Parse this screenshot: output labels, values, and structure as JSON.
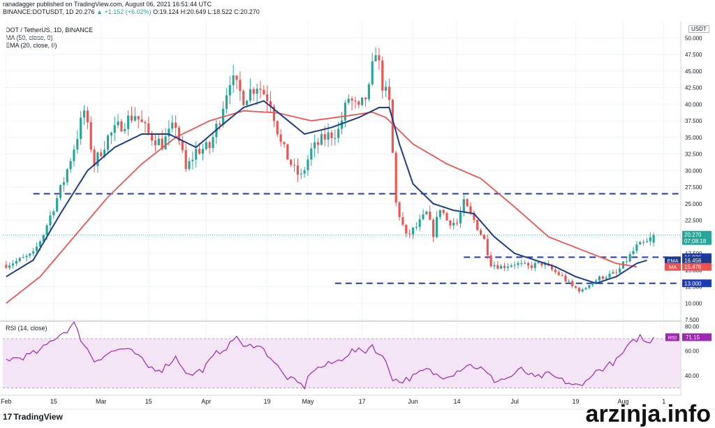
{
  "header": {
    "publisher": "ranadagger published on TradingView.com, August 06, 2021 16:51:44 UTC",
    "symbol": "BINANCE:DOTUSDT, 1D",
    "last": "20.276",
    "change_arrow": "▲",
    "change": "+1.152 (+6.02%)",
    "ohlc": "O:19.124 H:20.649 L:18.522 C:20.270"
  },
  "legend": {
    "title": "DOT / TetherUS, 1D, BINANCE",
    "ma": "MA (50, close, 0)",
    "ema": "EMA (20, close, 0)"
  },
  "rsi_title": "RSI (14, close)",
  "currency": "USDT",
  "footer_logo": "TradingView",
  "watermark": "arzinja.info",
  "colors": {
    "up": "#26a69a",
    "down": "#ef5350",
    "ema": "#1e3a8a",
    "ma": "#ef5350",
    "levels": "#1e3bb3",
    "rsi": "#9c27b0",
    "rsi_band": "#f3e5f5",
    "axis_text": "#131722"
  },
  "chart_data": {
    "type": "candlestick",
    "price_axis": {
      "ticks": [
        7.5,
        10,
        12.5,
        15,
        17.5,
        20,
        22.5,
        25,
        27.5,
        30,
        32.5,
        35,
        37.5,
        40,
        42.5,
        45,
        47.5,
        50
      ],
      "tick_labels": [
        "7.500",
        "10.000",
        "12.500",
        "15.000",
        "17.500",
        "20.000",
        "22.500",
        "25.000",
        "27.500",
        "30.000",
        "32.500",
        "35.000",
        "37.500",
        "40.000",
        "42.500",
        "45.000",
        "47.500",
        "50.000"
      ],
      "ylim": [
        7.5,
        51.5
      ]
    },
    "rsi_axis": {
      "ticks": [
        40,
        60,
        80
      ],
      "tick_labels": [
        "40.00",
        "60.00",
        "80.00"
      ],
      "ylim": [
        27,
        83
      ],
      "band": [
        30,
        70
      ]
    },
    "time_axis": {
      "labels": [
        "Feb",
        "15",
        "Mar",
        "15",
        "Apr",
        "19",
        "May",
        "17",
        "Jun",
        "14",
        "Jul",
        "19",
        "Aug",
        "1"
      ],
      "label_days": [
        0,
        14,
        28,
        42,
        59,
        77,
        89,
        105,
        120,
        133,
        150,
        168,
        182,
        194
      ]
    },
    "levels": [
      {
        "value": 26.5,
        "label": "26.500",
        "from_day": 8
      },
      {
        "value": 16.936,
        "label": "16.936",
        "from_day": 135
      },
      {
        "value": 13.0,
        "label": "13.000",
        "from_day": 97
      }
    ],
    "price_labels": [
      {
        "label": "20.270",
        "sub": "07:08:18",
        "value": 20.27,
        "color": "#26a69a"
      },
      {
        "label": "16.936",
        "value": 16.936,
        "color": "#1e3bb3"
      },
      {
        "label": "16.456",
        "tag": "EMA",
        "value": 16.456,
        "color": "#1e3a8a"
      },
      {
        "label": "15.476",
        "tag": "MA",
        "value": 15.476,
        "color": "#ef5350"
      },
      {
        "label": "13.000",
        "value": 13.0,
        "color": "#1e3bb3"
      }
    ],
    "rsi_label": {
      "tag": "RSI",
      "label": "71.15",
      "value": 71.15
    },
    "anchors": {
      "close": [
        [
          0,
          15.8
        ],
        [
          4,
          16.5
        ],
        [
          8,
          17.4
        ],
        [
          11,
          20.5
        ],
        [
          14,
          24.5
        ],
        [
          17,
          28.5
        ],
        [
          20,
          33.5
        ],
        [
          23,
          39.0
        ],
        [
          26,
          31.0
        ],
        [
          30,
          35.0
        ],
        [
          34,
          37.0
        ],
        [
          38,
          38.5
        ],
        [
          42,
          35.5
        ],
        [
          46,
          34.0
        ],
        [
          50,
          37.0
        ],
        [
          53,
          30.0
        ],
        [
          56,
          33.0
        ],
        [
          60,
          33.5
        ],
        [
          63,
          38.0
        ],
        [
          66,
          44.0
        ],
        [
          70,
          41.0
        ],
        [
          74,
          43.0
        ],
        [
          78,
          40.5
        ],
        [
          81,
          34.0
        ],
        [
          85,
          30.0
        ],
        [
          87,
          29.0
        ],
        [
          90,
          33.0
        ],
        [
          94,
          35.0
        ],
        [
          98,
          36.0
        ],
        [
          101,
          41.0
        ],
        [
          104,
          39.0
        ],
        [
          107,
          42.0
        ],
        [
          109,
          48.5
        ],
        [
          111,
          43.0
        ],
        [
          113,
          40.0
        ],
        [
          115,
          25.0
        ],
        [
          118,
          20.0
        ],
        [
          121,
          21.5
        ],
        [
          124,
          23.5
        ],
        [
          126,
          20.5
        ],
        [
          128,
          24.5
        ],
        [
          130,
          22.5
        ],
        [
          133,
          22.0
        ],
        [
          135,
          25.0
        ],
        [
          138,
          22.5
        ],
        [
          141,
          19.5
        ],
        [
          143,
          16.0
        ],
        [
          146,
          15.5
        ],
        [
          150,
          16.0
        ],
        [
          154,
          15.5
        ],
        [
          158,
          16.0
        ],
        [
          161,
          15.0
        ],
        [
          164,
          14.0
        ],
        [
          167,
          12.5
        ],
        [
          170,
          11.8
        ],
        [
          172,
          13.0
        ],
        [
          176,
          14.0
        ],
        [
          180,
          14.5
        ],
        [
          183,
          16.5
        ],
        [
          186,
          18.5
        ],
        [
          189,
          19.1
        ],
        [
          191,
          20.27
        ]
      ],
      "ma50": [
        [
          0,
          10.0
        ],
        [
          10,
          14.0
        ],
        [
          20,
          20.0
        ],
        [
          30,
          26.0
        ],
        [
          40,
          31.0
        ],
        [
          50,
          35.0
        ],
        [
          60,
          37.5
        ],
        [
          70,
          39.0
        ],
        [
          80,
          38.7
        ],
        [
          90,
          37.5
        ],
        [
          100,
          38.2
        ],
        [
          108,
          38.8
        ],
        [
          112,
          38.0
        ],
        [
          120,
          34.0
        ],
        [
          130,
          31.0
        ],
        [
          140,
          28.8
        ],
        [
          150,
          24.5
        ],
        [
          160,
          20.0
        ],
        [
          170,
          18.0
        ],
        [
          180,
          16.0
        ],
        [
          186,
          15.48
        ]
      ],
      "ema20": [
        [
          0,
          14.0
        ],
        [
          8,
          16.5
        ],
        [
          16,
          23.5
        ],
        [
          24,
          30.0
        ],
        [
          32,
          33.5
        ],
        [
          40,
          35.5
        ],
        [
          48,
          35.5
        ],
        [
          56,
          33.5
        ],
        [
          64,
          37.0
        ],
        [
          70,
          39.5
        ],
        [
          76,
          40.5
        ],
        [
          82,
          38.0
        ],
        [
          88,
          35.5
        ],
        [
          96,
          36.5
        ],
        [
          104,
          38.0
        ],
        [
          110,
          39.5
        ],
        [
          113,
          39.5
        ],
        [
          116,
          34.0
        ],
        [
          120,
          28.0
        ],
        [
          126,
          25.0
        ],
        [
          132,
          24.0
        ],
        [
          138,
          23.5
        ],
        [
          144,
          20.0
        ],
        [
          150,
          17.5
        ],
        [
          156,
          16.5
        ],
        [
          162,
          15.5
        ],
        [
          168,
          14.0
        ],
        [
          174,
          13.0
        ],
        [
          180,
          14.0
        ],
        [
          186,
          16.0
        ],
        [
          189,
          16.46
        ]
      ],
      "rsi": [
        [
          0,
          53
        ],
        [
          5,
          55
        ],
        [
          10,
          60
        ],
        [
          14,
          70
        ],
        [
          18,
          77
        ],
        [
          20,
          82
        ],
        [
          22,
          70
        ],
        [
          26,
          52
        ],
        [
          30,
          58
        ],
        [
          34,
          62
        ],
        [
          38,
          58
        ],
        [
          42,
          47
        ],
        [
          46,
          45
        ],
        [
          50,
          55
        ],
        [
          54,
          40
        ],
        [
          58,
          45
        ],
        [
          62,
          58
        ],
        [
          66,
          65
        ],
        [
          68,
          73
        ],
        [
          70,
          62
        ],
        [
          74,
          66
        ],
        [
          78,
          55
        ],
        [
          82,
          40
        ],
        [
          86,
          34
        ],
        [
          88,
          31
        ],
        [
          90,
          44
        ],
        [
          94,
          48
        ],
        [
          98,
          52
        ],
        [
          102,
          60
        ],
        [
          106,
          60
        ],
        [
          108,
          65
        ],
        [
          110,
          57
        ],
        [
          112,
          52
        ],
        [
          114,
          38
        ],
        [
          116,
          35
        ],
        [
          120,
          39
        ],
        [
          124,
          45
        ],
        [
          128,
          39
        ],
        [
          132,
          42
        ],
        [
          136,
          49
        ],
        [
          140,
          46
        ],
        [
          144,
          36
        ],
        [
          148,
          38
        ],
        [
          152,
          45
        ],
        [
          156,
          38
        ],
        [
          160,
          41
        ],
        [
          164,
          36
        ],
        [
          168,
          32
        ],
        [
          170,
          31
        ],
        [
          172,
          40
        ],
        [
          176,
          46
        ],
        [
          180,
          52
        ],
        [
          184,
          65
        ],
        [
          187,
          72
        ],
        [
          189,
          66
        ],
        [
          191,
          71.15
        ]
      ]
    }
  }
}
